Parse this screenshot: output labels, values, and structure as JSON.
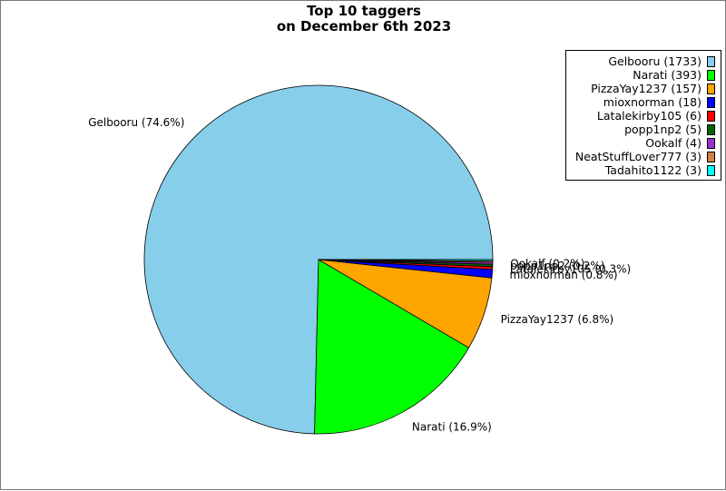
{
  "chart_data": {
    "type": "pie",
    "title": [
      "Top 10 taggers",
      "on December 6th 2023"
    ],
    "slices": [
      {
        "name": "Gelbooru",
        "value": 1733,
        "percent": "74.6%",
        "color": "#87CEEB"
      },
      {
        "name": "Narati",
        "value": 393,
        "percent": "16.9%",
        "color": "#00FF00"
      },
      {
        "name": "PizzaYay1237",
        "value": 157,
        "percent": "6.8%",
        "color": "#FFA500"
      },
      {
        "name": "mioxnorman",
        "value": 18,
        "percent": "0.8%",
        "color": "#0000FF"
      },
      {
        "name": "Latalekirby105",
        "value": 6,
        "percent": "0.3%",
        "color": "#FF0000"
      },
      {
        "name": "popp1np2",
        "value": 5,
        "percent": "0.2%",
        "color": "#006400"
      },
      {
        "name": "Ookalf",
        "value": 4,
        "percent": "0.2%",
        "color": "#9932CC"
      },
      {
        "name": "NeatStuffLover777",
        "value": 3,
        "percent": "0.1%",
        "color": "#CD853F"
      },
      {
        "name": "Tadahito1122",
        "value": 3,
        "percent": "0.1%",
        "color": "#00FFFF"
      }
    ],
    "legend": [
      "Gelbooru (1733)",
      "Narati (393)",
      "PizzaYay1237 (157)",
      "mioxnorman (18)",
      "Latalekirby105 (6)",
      "popp1np2 (5)",
      "Ookalf (4)",
      "NeatStuffLover777 (3)",
      "Tadahito1122 (3)"
    ],
    "slice_labels": [
      "Gelbooru (74.6%)",
      "Narati (16.9%)",
      "PizzaYay1237 (6.8%)",
      "mioxnorman (0.8%)",
      "Latalekirby105 (0.3%)",
      "popp1np2 (0.2%)",
      "Ookalf (0.2%)"
    ],
    "legend_position": "top-right"
  }
}
